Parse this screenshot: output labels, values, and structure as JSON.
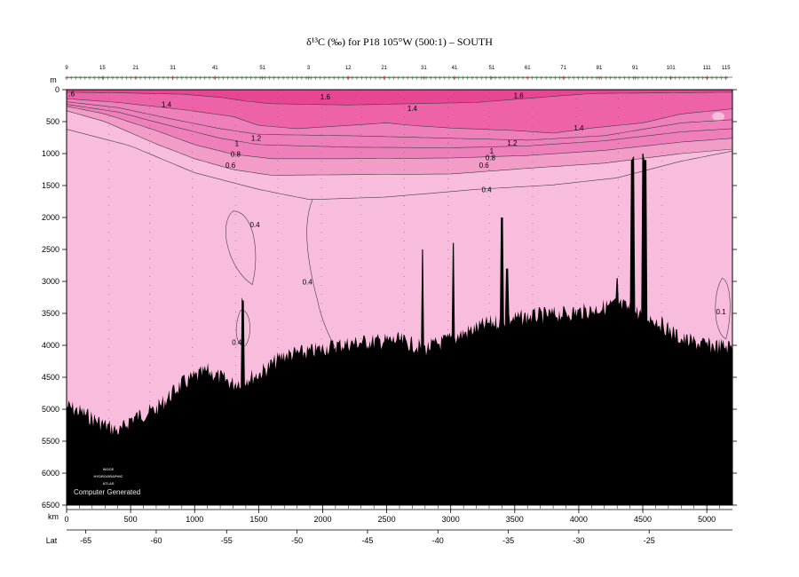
{
  "chart_data": {
    "type": "section-contour",
    "title": "δ¹³C (‰) for P18 105°W (500:1) – SOUTH",
    "xlabel": "km",
    "ylabel": "m",
    "xlim": [
      0,
      5200
    ],
    "ylim": [
      0,
      6500
    ],
    "x_ticks": [
      0,
      500,
      1000,
      1500,
      2000,
      2500,
      3000,
      3500,
      4000,
      4500,
      5000
    ],
    "y_ticks": [
      0,
      500,
      1000,
      1500,
      2000,
      2500,
      3000,
      3500,
      4000,
      4500,
      5000,
      5500,
      6000,
      6500
    ],
    "lat_label": "Lat",
    "lat_ticks": [
      {
        "lat": -65,
        "km": 150
      },
      {
        "lat": -60,
        "km": 700
      },
      {
        "lat": -55,
        "km": 1250
      },
      {
        "lat": -50,
        "km": 1800
      },
      {
        "lat": -45,
        "km": 2350
      },
      {
        "lat": -40,
        "km": 2900
      },
      {
        "lat": -35,
        "km": 3450
      },
      {
        "lat": -30,
        "km": 4000
      },
      {
        "lat": -25,
        "km": 4550
      }
    ],
    "station_ticks": [
      {
        "label": "9",
        "km": 0
      },
      {
        "label": "15",
        "km": 280
      },
      {
        "label": "21",
        "km": 540
      },
      {
        "label": "31",
        "km": 830
      },
      {
        "label": "41",
        "km": 1160
      },
      {
        "label": "51",
        "km": 1530
      },
      {
        "label": "3",
        "km": 1890
      },
      {
        "label": "12",
        "km": 2200
      },
      {
        "label": "21",
        "km": 2480
      },
      {
        "label": "31",
        "km": 2790
      },
      {
        "label": "41",
        "km": 3030
      },
      {
        "label": "51",
        "km": 3320
      },
      {
        "label": "61",
        "km": 3600
      },
      {
        "label": "71",
        "km": 3880
      },
      {
        "label": "81",
        "km": 4160
      },
      {
        "label": "91",
        "km": 4440
      },
      {
        "label": "101",
        "km": 4720
      },
      {
        "label": "111",
        "km": 5000
      },
      {
        "label": "115",
        "km": 5150
      }
    ],
    "contour_levels": [
      0.1,
      0.4,
      0.6,
      0.8,
      1.0,
      1.2,
      1.4,
      1.6
    ],
    "contour_labels": [
      {
        "text": ".6",
        "km": 40,
        "depth": 60
      },
      {
        "text": "1.4",
        "km": 780,
        "depth": 230
      },
      {
        "text": "1.6",
        "km": 2020,
        "depth": 110
      },
      {
        "text": "1.4",
        "km": 2700,
        "depth": 290
      },
      {
        "text": "1.6",
        "km": 3530,
        "depth": 90
      },
      {
        "text": "1.4",
        "km": 4000,
        "depth": 600
      },
      {
        "text": "1.2",
        "km": 1480,
        "depth": 760
      },
      {
        "text": "1",
        "km": 1330,
        "depth": 840
      },
      {
        "text": "0.8",
        "km": 1320,
        "depth": 1010
      },
      {
        "text": "0.6",
        "km": 1280,
        "depth": 1180
      },
      {
        "text": "1.2",
        "km": 3480,
        "depth": 830
      },
      {
        "text": "1",
        "km": 3320,
        "depth": 960
      },
      {
        "text": "0.8",
        "km": 3310,
        "depth": 1060
      },
      {
        "text": "0.6",
        "km": 3260,
        "depth": 1180
      },
      {
        "text": "0.4",
        "km": 3280,
        "depth": 1560
      },
      {
        "text": "0.4",
        "km": 1470,
        "depth": 2110
      },
      {
        "text": "0.4",
        "km": 1880,
        "depth": 3010
      },
      {
        "text": "0.4",
        "km": 1330,
        "depth": 3950
      },
      {
        "text": "0.1",
        "km": 5110,
        "depth": 3470
      }
    ],
    "colors": {
      "band_04_06": "#f8bcdc",
      "band_06_08": "#f29cc8",
      "band_08_14": "#ee7fba",
      "band_14_16": "#ee63a8",
      "band_16_up": "#e84695",
      "bathymetry": "#000000",
      "contour_line": "#404040"
    },
    "grid": false,
    "legend": "none"
  },
  "logo": {
    "line1": "WOCE",
    "line2": "HYDROGRAPHIC",
    "line3": "ATLAS",
    "credit": "Computer Generated"
  }
}
